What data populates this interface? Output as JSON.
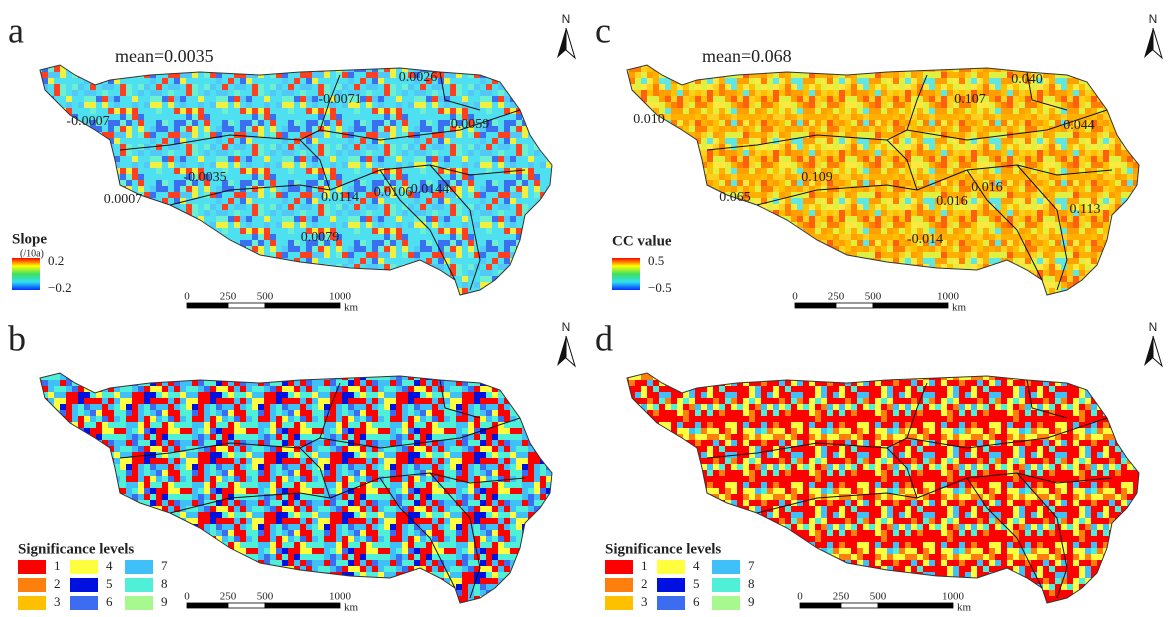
{
  "panels": [
    {
      "letter": "a",
      "mean": "mean=0.0035",
      "north": "N",
      "labels": [
        "0.0026",
        "-0.0071",
        "0.0059",
        "-0.0007",
        "-0.0035",
        "0.0007",
        "0.0114",
        "0.0106",
        "0.0144",
        "0.0079"
      ],
      "legend": {
        "title": "Slope",
        "unit": "(/10a)",
        "max": "0.2",
        "min": "−0.2"
      },
      "scale": {
        "ticks": [
          "0",
          "250",
          "500",
          "1000"
        ],
        "unit": "km"
      }
    },
    {
      "letter": "c",
      "mean": "mean=0.068",
      "north": "N",
      "labels": [
        "0.040",
        "0.107",
        "0.010",
        "0.044",
        "0.109",
        "0.065",
        "0.016",
        "0.016",
        "0.113",
        "-0.014"
      ],
      "legend": {
        "title": "CC value",
        "max": "0.5",
        "min": "−0.5"
      },
      "scale": {
        "ticks": [
          "0",
          "250",
          "500",
          "1000"
        ],
        "unit": "km"
      }
    },
    {
      "letter": "b",
      "north": "N",
      "legend": {
        "title": "Significance levels",
        "items": [
          "1",
          "2",
          "3",
          "4",
          "5",
          "6",
          "7",
          "8",
          "9"
        ]
      },
      "scale": {
        "ticks": [
          "0",
          "250",
          "500",
          "1000"
        ],
        "unit": "km"
      }
    },
    {
      "letter": "d",
      "north": "N",
      "legend": {
        "title": "Significance levels",
        "items": [
          "1",
          "2",
          "3",
          "4",
          "5",
          "6",
          "7",
          "8",
          "9"
        ]
      },
      "scale": {
        "ticks": [
          "0",
          "250",
          "500",
          "1000"
        ],
        "unit": "km"
      }
    }
  ]
}
